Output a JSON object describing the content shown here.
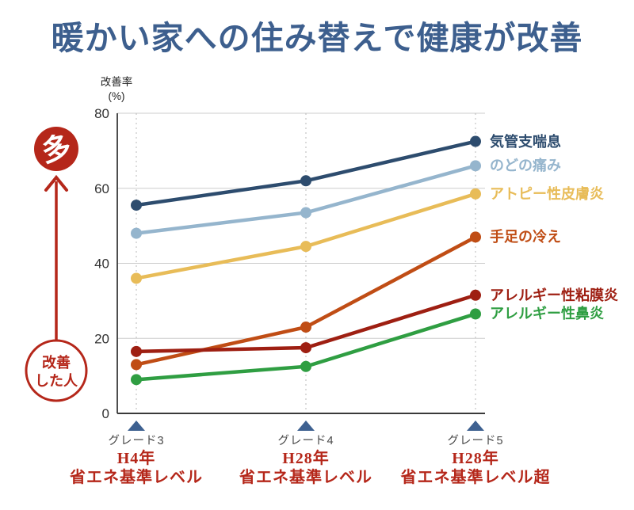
{
  "annotation": {
    "top_label": "多",
    "bottom_label_lines": [
      "改善",
      "した人"
    ]
  },
  "colors": {
    "accent": "#b5271a",
    "title": "#3d5f8e",
    "triangle": "#3e6191",
    "grid": "#cccccc",
    "axis": "#3a3a3a",
    "tick_label": "#333333",
    "grade_label": "#4a4a4a",
    "background": "#ffffff"
  },
  "chart_data": {
    "type": "line",
    "title": "暖かい家への住み替えで健康が改善",
    "ylabel": "改善率",
    "ylabel_unit": "(%)",
    "ylim": [
      0,
      80
    ],
    "yticks": [
      0,
      20,
      40,
      60,
      80
    ],
    "grid": "horizontal",
    "legend_position": "right-of-line-endpoints",
    "categories": [
      "グレード3",
      "グレード4",
      "グレード5"
    ],
    "category_sublabels": [
      [
        "H4年",
        "省エネ基準レベル"
      ],
      [
        "H28年",
        "省エネ基準レベル"
      ],
      [
        "H28年",
        "省エネ基準レベル超"
      ]
    ],
    "series": [
      {
        "name": "気管支喘息",
        "color": "#2d4c6e",
        "values": [
          55.5,
          62,
          72.5
        ]
      },
      {
        "name": "のどの痛み",
        "color": "#95b5cd",
        "values": [
          48,
          53.5,
          66
        ]
      },
      {
        "name": "アトピー性皮膚炎",
        "color": "#e8bc58",
        "values": [
          36,
          44.5,
          58.5
        ]
      },
      {
        "name": "手足の冷え",
        "color": "#c04d15",
        "values": [
          13,
          23,
          47
        ]
      },
      {
        "name": "アレルギー性粘膜炎",
        "color": "#9e1f12",
        "values": [
          16.5,
          17.5,
          31.5
        ]
      },
      {
        "name": "アレルギー性鼻炎",
        "color": "#2f9e42",
        "values": [
          9,
          12.5,
          26.5
        ]
      }
    ]
  }
}
